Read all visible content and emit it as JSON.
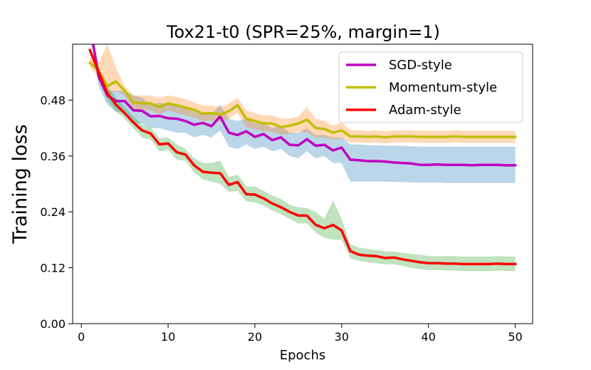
{
  "chart_data": {
    "type": "line",
    "title": "Tox21-t0 (SPR=25%, margin=1)",
    "xlabel": "Epochs",
    "ylabel": "Training loss",
    "xlim": [
      -1,
      52
    ],
    "ylim": [
      0.0,
      0.6
    ],
    "xticks": [
      0,
      10,
      20,
      30,
      40,
      50
    ],
    "xtick_labels": [
      "0",
      "10",
      "20",
      "30",
      "40",
      "50"
    ],
    "yticks": [
      0.0,
      0.12,
      0.24,
      0.36,
      0.48
    ],
    "ytick_labels": [
      "0.00",
      "0.12",
      "0.24",
      "0.36",
      "0.48"
    ],
    "grid": false,
    "legend_position": "top-right",
    "x": [
      1,
      2,
      3,
      4,
      5,
      6,
      7,
      8,
      9,
      10,
      11,
      12,
      13,
      14,
      15,
      16,
      17,
      18,
      19,
      20,
      21,
      22,
      23,
      24,
      25,
      26,
      27,
      28,
      29,
      30,
      31,
      32,
      33,
      34,
      35,
      36,
      37,
      38,
      39,
      40,
      41,
      42,
      43,
      44,
      45,
      46,
      47,
      48,
      49,
      50
    ],
    "series": [
      {
        "name": "SGD-style",
        "color": "#bf00bf",
        "values": [
          0.64,
          0.53,
          0.49,
          0.478,
          0.478,
          0.458,
          0.457,
          0.445,
          0.446,
          0.441,
          0.44,
          0.435,
          0.427,
          0.431,
          0.424,
          0.445,
          0.41,
          0.405,
          0.413,
          0.401,
          0.407,
          0.394,
          0.4,
          0.384,
          0.383,
          0.396,
          0.382,
          0.384,
          0.372,
          0.378,
          0.352,
          0.351,
          0.349,
          0.349,
          0.348,
          0.346,
          0.345,
          0.344,
          0.341,
          0.341,
          0.342,
          0.341,
          0.341,
          0.341,
          0.34,
          0.341,
          0.341,
          0.341,
          0.34,
          0.34
        ],
        "upper": [
          0.65,
          0.55,
          0.5,
          0.5,
          0.5,
          0.49,
          0.485,
          0.47,
          0.475,
          0.47,
          0.468,
          0.462,
          0.455,
          0.452,
          0.45,
          0.47,
          0.44,
          0.435,
          0.44,
          0.43,
          0.43,
          0.42,
          0.425,
          0.41,
          0.41,
          0.42,
          0.405,
          0.405,
          0.4,
          0.4,
          0.385,
          0.385,
          0.383,
          0.383,
          0.382,
          0.382,
          0.382,
          0.381,
          0.38,
          0.38,
          0.38,
          0.38,
          0.38,
          0.38,
          0.38,
          0.38,
          0.38,
          0.38,
          0.38,
          0.38
        ],
        "lower": [
          0.62,
          0.51,
          0.47,
          0.455,
          0.455,
          0.43,
          0.43,
          0.42,
          0.42,
          0.415,
          0.41,
          0.41,
          0.4,
          0.405,
          0.4,
          0.415,
          0.38,
          0.375,
          0.385,
          0.375,
          0.38,
          0.37,
          0.375,
          0.36,
          0.355,
          0.37,
          0.355,
          0.36,
          0.345,
          0.345,
          0.305,
          0.305,
          0.305,
          0.305,
          0.305,
          0.304,
          0.304,
          0.303,
          0.303,
          0.303,
          0.303,
          0.302,
          0.302,
          0.302,
          0.302,
          0.302,
          0.302,
          0.302,
          0.302,
          0.302
        ]
      },
      {
        "name": "Momentum-style",
        "color": "#bfbf00",
        "values": [
          0.56,
          0.543,
          0.51,
          0.52,
          0.5,
          0.475,
          0.473,
          0.473,
          0.465,
          0.473,
          0.469,
          0.464,
          0.459,
          0.451,
          0.452,
          0.449,
          0.456,
          0.469,
          0.44,
          0.435,
          0.43,
          0.43,
          0.422,
          0.425,
          0.43,
          0.438,
          0.42,
          0.418,
          0.41,
          0.415,
          0.402,
          0.402,
          0.401,
          0.402,
          0.4,
          0.402,
          0.402,
          0.402,
          0.401,
          0.401,
          0.401,
          0.401,
          0.402,
          0.401,
          0.401,
          0.401,
          0.401,
          0.401,
          0.401,
          0.401
        ],
        "upper": [
          0.57,
          0.56,
          0.6,
          0.55,
          0.51,
          0.49,
          0.49,
          0.49,
          0.485,
          0.49,
          0.487,
          0.482,
          0.475,
          0.468,
          0.468,
          0.465,
          0.472,
          0.485,
          0.458,
          0.452,
          0.447,
          0.447,
          0.44,
          0.44,
          0.445,
          0.465,
          0.44,
          0.435,
          0.425,
          0.432,
          0.415,
          0.415,
          0.414,
          0.415,
          0.413,
          0.415,
          0.415,
          0.415,
          0.414,
          0.414,
          0.414,
          0.414,
          0.415,
          0.414,
          0.414,
          0.414,
          0.414,
          0.414,
          0.414,
          0.414
        ],
        "lower": [
          0.55,
          0.53,
          0.49,
          0.5,
          0.49,
          0.46,
          0.458,
          0.458,
          0.45,
          0.458,
          0.452,
          0.447,
          0.443,
          0.435,
          0.436,
          0.433,
          0.44,
          0.453,
          0.422,
          0.418,
          0.413,
          0.413,
          0.405,
          0.408,
          0.413,
          0.41,
          0.4,
          0.4,
          0.395,
          0.398,
          0.389,
          0.389,
          0.388,
          0.389,
          0.387,
          0.389,
          0.389,
          0.389,
          0.388,
          0.388,
          0.388,
          0.388,
          0.389,
          0.388,
          0.388,
          0.388,
          0.388,
          0.388,
          0.388,
          0.388
        ]
      },
      {
        "name": "Adam-style",
        "color": "#ff0000",
        "values": [
          0.587,
          0.54,
          0.495,
          0.47,
          0.452,
          0.432,
          0.415,
          0.408,
          0.385,
          0.387,
          0.368,
          0.363,
          0.34,
          0.326,
          0.324,
          0.323,
          0.298,
          0.304,
          0.278,
          0.277,
          0.269,
          0.258,
          0.25,
          0.24,
          0.232,
          0.232,
          0.212,
          0.205,
          0.212,
          0.2,
          0.156,
          0.148,
          0.146,
          0.145,
          0.141,
          0.142,
          0.138,
          0.135,
          0.132,
          0.13,
          0.13,
          0.129,
          0.129,
          0.128,
          0.128,
          0.128,
          0.128,
          0.129,
          0.128,
          0.128
        ],
        "upper": [
          0.595,
          0.55,
          0.51,
          0.485,
          0.465,
          0.445,
          0.428,
          0.421,
          0.398,
          0.4,
          0.385,
          0.375,
          0.355,
          0.345,
          0.345,
          0.35,
          0.315,
          0.32,
          0.295,
          0.295,
          0.285,
          0.275,
          0.268,
          0.255,
          0.25,
          0.248,
          0.24,
          0.225,
          0.265,
          0.225,
          0.17,
          0.163,
          0.16,
          0.158,
          0.155,
          0.155,
          0.152,
          0.15,
          0.148,
          0.145,
          0.145,
          0.145,
          0.145,
          0.144,
          0.144,
          0.144,
          0.144,
          0.145,
          0.144,
          0.144
        ],
        "lower": [
          0.58,
          0.53,
          0.48,
          0.455,
          0.44,
          0.42,
          0.4,
          0.395,
          0.37,
          0.373,
          0.352,
          0.35,
          0.325,
          0.31,
          0.305,
          0.3,
          0.283,
          0.285,
          0.263,
          0.26,
          0.254,
          0.243,
          0.235,
          0.225,
          0.215,
          0.215,
          0.195,
          0.185,
          0.18,
          0.18,
          0.14,
          0.135,
          0.132,
          0.13,
          0.127,
          0.128,
          0.124,
          0.12,
          0.117,
          0.115,
          0.115,
          0.114,
          0.114,
          0.113,
          0.113,
          0.113,
          0.113,
          0.114,
          0.113,
          0.113
        ]
      }
    ]
  },
  "fill_colors": [
    "#1f77b4",
    "#ff7f0e",
    "#2ca02c"
  ]
}
